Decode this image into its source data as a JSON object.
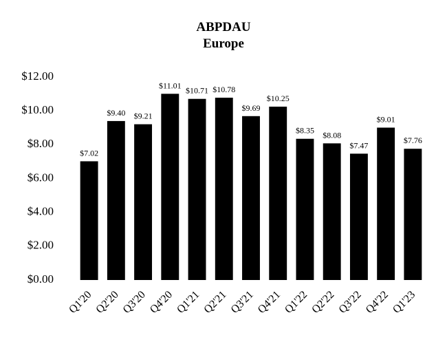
{
  "chart_data": {
    "type": "bar",
    "title": "ABPDAU",
    "subtitle": "Europe",
    "categories": [
      "Q1'20",
      "Q2'20",
      "Q3'20",
      "Q4'20",
      "Q1'21",
      "Q2'21",
      "Q3'21",
      "Q4'21",
      "Q1'22",
      "Q2'22",
      "Q3'22",
      "Q4'22",
      "Q1'23"
    ],
    "values": [
      7.02,
      9.4,
      9.21,
      11.01,
      10.71,
      10.78,
      9.69,
      10.25,
      8.35,
      8.08,
      7.47,
      9.01,
      7.76
    ],
    "value_labels": [
      "$7.02",
      "$9.40",
      "$9.21",
      "$11.01",
      "$10.71",
      "$10.78",
      "$9.69",
      "$10.25",
      "$8.35",
      "$8.08",
      "$7.47",
      "$9.01",
      "$7.76"
    ],
    "color": "#000000",
    "ylim": [
      0,
      12
    ],
    "yticks": [
      {
        "value": 0,
        "label": "$0.00"
      },
      {
        "value": 2,
        "label": "$2.00"
      },
      {
        "value": 4,
        "label": "$4.00"
      },
      {
        "value": 6,
        "label": "$6.00"
      },
      {
        "value": 8,
        "label": "$8.00"
      },
      {
        "value": 10,
        "label": "$10.00"
      },
      {
        "value": 12,
        "label": "$12.00"
      }
    ],
    "grid": false
  }
}
